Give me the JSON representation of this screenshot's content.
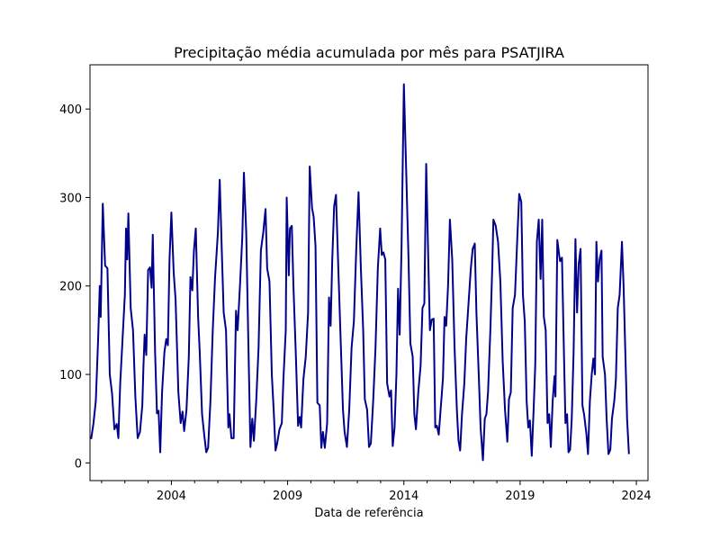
{
  "chart_data": {
    "type": "line",
    "title": "Precipitação média acumulada por mês para PSATJIRA",
    "xlabel": "Data de referência",
    "ylabel": "",
    "xlim": [
      2000.5,
      2024.5
    ],
    "ylim": [
      -20,
      450
    ],
    "x_ticks": [
      2004,
      2009,
      2014,
      2019,
      2024
    ],
    "y_ticks": [
      0,
      100,
      200,
      300,
      400
    ],
    "grid": false,
    "series": [
      {
        "color": "#00008b",
        "points": [
          [
            2000.55,
            27
          ],
          [
            2000.65,
            45
          ],
          [
            2000.75,
            70
          ],
          [
            2000.85,
            140
          ],
          [
            2000.92,
            200
          ],
          [
            2000.96,
            165
          ],
          [
            2001.05,
            293
          ],
          [
            2001.15,
            223
          ],
          [
            2001.25,
            220
          ],
          [
            2001.35,
            100
          ],
          [
            2001.45,
            78
          ],
          [
            2001.55,
            38
          ],
          [
            2001.65,
            44
          ],
          [
            2001.72,
            28
          ],
          [
            2001.8,
            90
          ],
          [
            2001.9,
            140
          ],
          [
            2002.0,
            190
          ],
          [
            2002.05,
            265
          ],
          [
            2002.1,
            230
          ],
          [
            2002.15,
            282
          ],
          [
            2002.25,
            175
          ],
          [
            2002.35,
            150
          ],
          [
            2002.45,
            75
          ],
          [
            2002.55,
            28
          ],
          [
            2002.65,
            35
          ],
          [
            2002.75,
            65
          ],
          [
            2002.8,
            110
          ],
          [
            2002.85,
            145
          ],
          [
            2002.92,
            122
          ],
          [
            2003.0,
            218
          ],
          [
            2003.08,
            221
          ],
          [
            2003.15,
            198
          ],
          [
            2003.2,
            258
          ],
          [
            2003.3,
            125
          ],
          [
            2003.38,
            56
          ],
          [
            2003.45,
            59
          ],
          [
            2003.52,
            12
          ],
          [
            2003.6,
            80
          ],
          [
            2003.7,
            125
          ],
          [
            2003.78,
            140
          ],
          [
            2003.85,
            133
          ],
          [
            2003.92,
            230
          ],
          [
            2004.0,
            283
          ],
          [
            2004.1,
            215
          ],
          [
            2004.18,
            185
          ],
          [
            2004.3,
            80
          ],
          [
            2004.4,
            45
          ],
          [
            2004.48,
            58
          ],
          [
            2004.55,
            36
          ],
          [
            2004.65,
            60
          ],
          [
            2004.75,
            120
          ],
          [
            2004.82,
            210
          ],
          [
            2004.9,
            195
          ],
          [
            2004.97,
            240
          ],
          [
            2005.05,
            265
          ],
          [
            2005.15,
            165
          ],
          [
            2005.22,
            125
          ],
          [
            2005.32,
            55
          ],
          [
            2005.42,
            30
          ],
          [
            2005.5,
            12
          ],
          [
            2005.58,
            17
          ],
          [
            2005.68,
            70
          ],
          [
            2005.78,
            150
          ],
          [
            2005.88,
            210
          ],
          [
            2006.0,
            260
          ],
          [
            2006.08,
            320
          ],
          [
            2006.18,
            230
          ],
          [
            2006.25,
            170
          ],
          [
            2006.35,
            150
          ],
          [
            2006.45,
            40
          ],
          [
            2006.5,
            55
          ],
          [
            2006.58,
            28
          ],
          [
            2006.68,
            28
          ],
          [
            2006.78,
            172
          ],
          [
            2006.85,
            150
          ],
          [
            2006.95,
            200
          ],
          [
            2007.05,
            255
          ],
          [
            2007.12,
            328
          ],
          [
            2007.22,
            260
          ],
          [
            2007.3,
            150
          ],
          [
            2007.4,
            18
          ],
          [
            2007.48,
            50
          ],
          [
            2007.55,
            25
          ],
          [
            2007.65,
            70
          ],
          [
            2007.75,
            130
          ],
          [
            2007.85,
            240
          ],
          [
            2007.95,
            260
          ],
          [
            2008.05,
            287
          ],
          [
            2008.12,
            220
          ],
          [
            2008.22,
            205
          ],
          [
            2008.32,
            100
          ],
          [
            2008.4,
            60
          ],
          [
            2008.48,
            14
          ],
          [
            2008.55,
            22
          ],
          [
            2008.65,
            38
          ],
          [
            2008.75,
            45
          ],
          [
            2008.82,
            95
          ],
          [
            2008.92,
            150
          ],
          [
            2008.96,
            300
          ],
          [
            2009.05,
            212
          ],
          [
            2009.1,
            265
          ],
          [
            2009.18,
            268
          ],
          [
            2009.25,
            200
          ],
          [
            2009.35,
            125
          ],
          [
            2009.45,
            42
          ],
          [
            2009.52,
            52
          ],
          [
            2009.58,
            40
          ],
          [
            2009.68,
            95
          ],
          [
            2009.78,
            120
          ],
          [
            2009.88,
            170
          ],
          [
            2009.95,
            335
          ],
          [
            2010.05,
            288
          ],
          [
            2010.12,
            278
          ],
          [
            2010.2,
            245
          ],
          [
            2010.28,
            68
          ],
          [
            2010.38,
            65
          ],
          [
            2010.45,
            17
          ],
          [
            2010.52,
            35
          ],
          [
            2010.6,
            17
          ],
          [
            2010.7,
            45
          ],
          [
            2010.78,
            187
          ],
          [
            2010.85,
            155
          ],
          [
            2010.92,
            230
          ],
          [
            2011.0,
            290
          ],
          [
            2011.08,
            303
          ],
          [
            2011.18,
            220
          ],
          [
            2011.28,
            140
          ],
          [
            2011.38,
            60
          ],
          [
            2011.45,
            35
          ],
          [
            2011.55,
            18
          ],
          [
            2011.65,
            60
          ],
          [
            2011.75,
            130
          ],
          [
            2011.85,
            160
          ],
          [
            2011.95,
            240
          ],
          [
            2012.05,
            306
          ],
          [
            2012.15,
            220
          ],
          [
            2012.25,
            150
          ],
          [
            2012.32,
            72
          ],
          [
            2012.42,
            60
          ],
          [
            2012.5,
            18
          ],
          [
            2012.58,
            22
          ],
          [
            2012.68,
            70
          ],
          [
            2012.78,
            130
          ],
          [
            2012.88,
            220
          ],
          [
            2012.98,
            265
          ],
          [
            2013.05,
            235
          ],
          [
            2013.12,
            238
          ],
          [
            2013.2,
            230
          ],
          [
            2013.28,
            90
          ],
          [
            2013.38,
            75
          ],
          [
            2013.45,
            82
          ],
          [
            2013.52,
            19
          ],
          [
            2013.6,
            40
          ],
          [
            2013.68,
            100
          ],
          [
            2013.75,
            197
          ],
          [
            2013.82,
            145
          ],
          [
            2013.9,
            245
          ],
          [
            2014.0,
            428
          ],
          [
            2014.1,
            330
          ],
          [
            2014.2,
            230
          ],
          [
            2014.28,
            135
          ],
          [
            2014.38,
            120
          ],
          [
            2014.45,
            55
          ],
          [
            2014.52,
            38
          ],
          [
            2014.62,
            80
          ],
          [
            2014.72,
            110
          ],
          [
            2014.8,
            175
          ],
          [
            2014.88,
            180
          ],
          [
            2014.96,
            338
          ],
          [
            2015.05,
            230
          ],
          [
            2015.12,
            150
          ],
          [
            2015.2,
            162
          ],
          [
            2015.28,
            163
          ],
          [
            2015.35,
            40
          ],
          [
            2015.42,
            42
          ],
          [
            2015.5,
            32
          ],
          [
            2015.58,
            60
          ],
          [
            2015.68,
            95
          ],
          [
            2015.75,
            165
          ],
          [
            2015.82,
            155
          ],
          [
            2015.9,
            200
          ],
          [
            2015.98,
            275
          ],
          [
            2016.08,
            230
          ],
          [
            2016.18,
            130
          ],
          [
            2016.28,
            60
          ],
          [
            2016.35,
            25
          ],
          [
            2016.42,
            14
          ],
          [
            2016.5,
            55
          ],
          [
            2016.6,
            90
          ],
          [
            2016.68,
            140
          ],
          [
            2016.78,
            180
          ],
          [
            2016.88,
            220
          ],
          [
            2016.96,
            242
          ],
          [
            2017.05,
            248
          ],
          [
            2017.12,
            170
          ],
          [
            2017.22,
            100
          ],
          [
            2017.3,
            40
          ],
          [
            2017.4,
            3
          ],
          [
            2017.48,
            50
          ],
          [
            2017.55,
            55
          ],
          [
            2017.62,
            80
          ],
          [
            2017.72,
            150
          ],
          [
            2017.8,
            220
          ],
          [
            2017.85,
            275
          ],
          [
            2017.95,
            268
          ],
          [
            2018.05,
            250
          ],
          [
            2018.15,
            205
          ],
          [
            2018.25,
            115
          ],
          [
            2018.35,
            60
          ],
          [
            2018.45,
            24
          ],
          [
            2018.52,
            72
          ],
          [
            2018.6,
            80
          ],
          [
            2018.68,
            175
          ],
          [
            2018.78,
            190
          ],
          [
            2018.88,
            255
          ],
          [
            2018.96,
            304
          ],
          [
            2019.05,
            295
          ],
          [
            2019.12,
            190
          ],
          [
            2019.2,
            160
          ],
          [
            2019.28,
            70
          ],
          [
            2019.35,
            40
          ],
          [
            2019.42,
            48
          ],
          [
            2019.5,
            8
          ],
          [
            2019.58,
            60
          ],
          [
            2019.65,
            110
          ],
          [
            2019.72,
            250
          ],
          [
            2019.8,
            275
          ],
          [
            2019.88,
            208
          ],
          [
            2019.95,
            275
          ],
          [
            2020.02,
            165
          ],
          [
            2020.1,
            150
          ],
          [
            2020.18,
            45
          ],
          [
            2020.25,
            55
          ],
          [
            2020.32,
            18
          ],
          [
            2020.4,
            70
          ],
          [
            2020.48,
            98
          ],
          [
            2020.52,
            75
          ],
          [
            2020.6,
            252
          ],
          [
            2020.68,
            235
          ],
          [
            2020.72,
            228
          ],
          [
            2020.8,
            232
          ],
          [
            2020.88,
            130
          ],
          [
            2020.95,
            45
          ],
          [
            2021.02,
            55
          ],
          [
            2021.08,
            12
          ],
          [
            2021.15,
            15
          ],
          [
            2021.22,
            50
          ],
          [
            2021.3,
            125
          ],
          [
            2021.38,
            253
          ],
          [
            2021.45,
            170
          ],
          [
            2021.52,
            225
          ],
          [
            2021.6,
            242
          ],
          [
            2021.68,
            65
          ],
          [
            2021.75,
            55
          ],
          [
            2021.85,
            33
          ],
          [
            2021.92,
            10
          ],
          [
            2022.0,
            70
          ],
          [
            2022.08,
            100
          ],
          [
            2022.15,
            118
          ],
          [
            2022.22,
            100
          ],
          [
            2022.28,
            250
          ],
          [
            2022.35,
            205
          ],
          [
            2022.42,
            230
          ],
          [
            2022.5,
            240
          ],
          [
            2022.55,
            120
          ],
          [
            2022.65,
            100
          ],
          [
            2022.72,
            50
          ],
          [
            2022.8,
            10
          ],
          [
            2022.88,
            15
          ],
          [
            2022.95,
            50
          ],
          [
            2023.05,
            70
          ],
          [
            2023.12,
            95
          ],
          [
            2023.2,
            175
          ],
          [
            2023.28,
            190
          ],
          [
            2023.38,
            250
          ],
          [
            2023.45,
            200
          ],
          [
            2023.52,
            130
          ],
          [
            2023.6,
            50
          ],
          [
            2023.68,
            10
          ]
        ]
      }
    ]
  }
}
